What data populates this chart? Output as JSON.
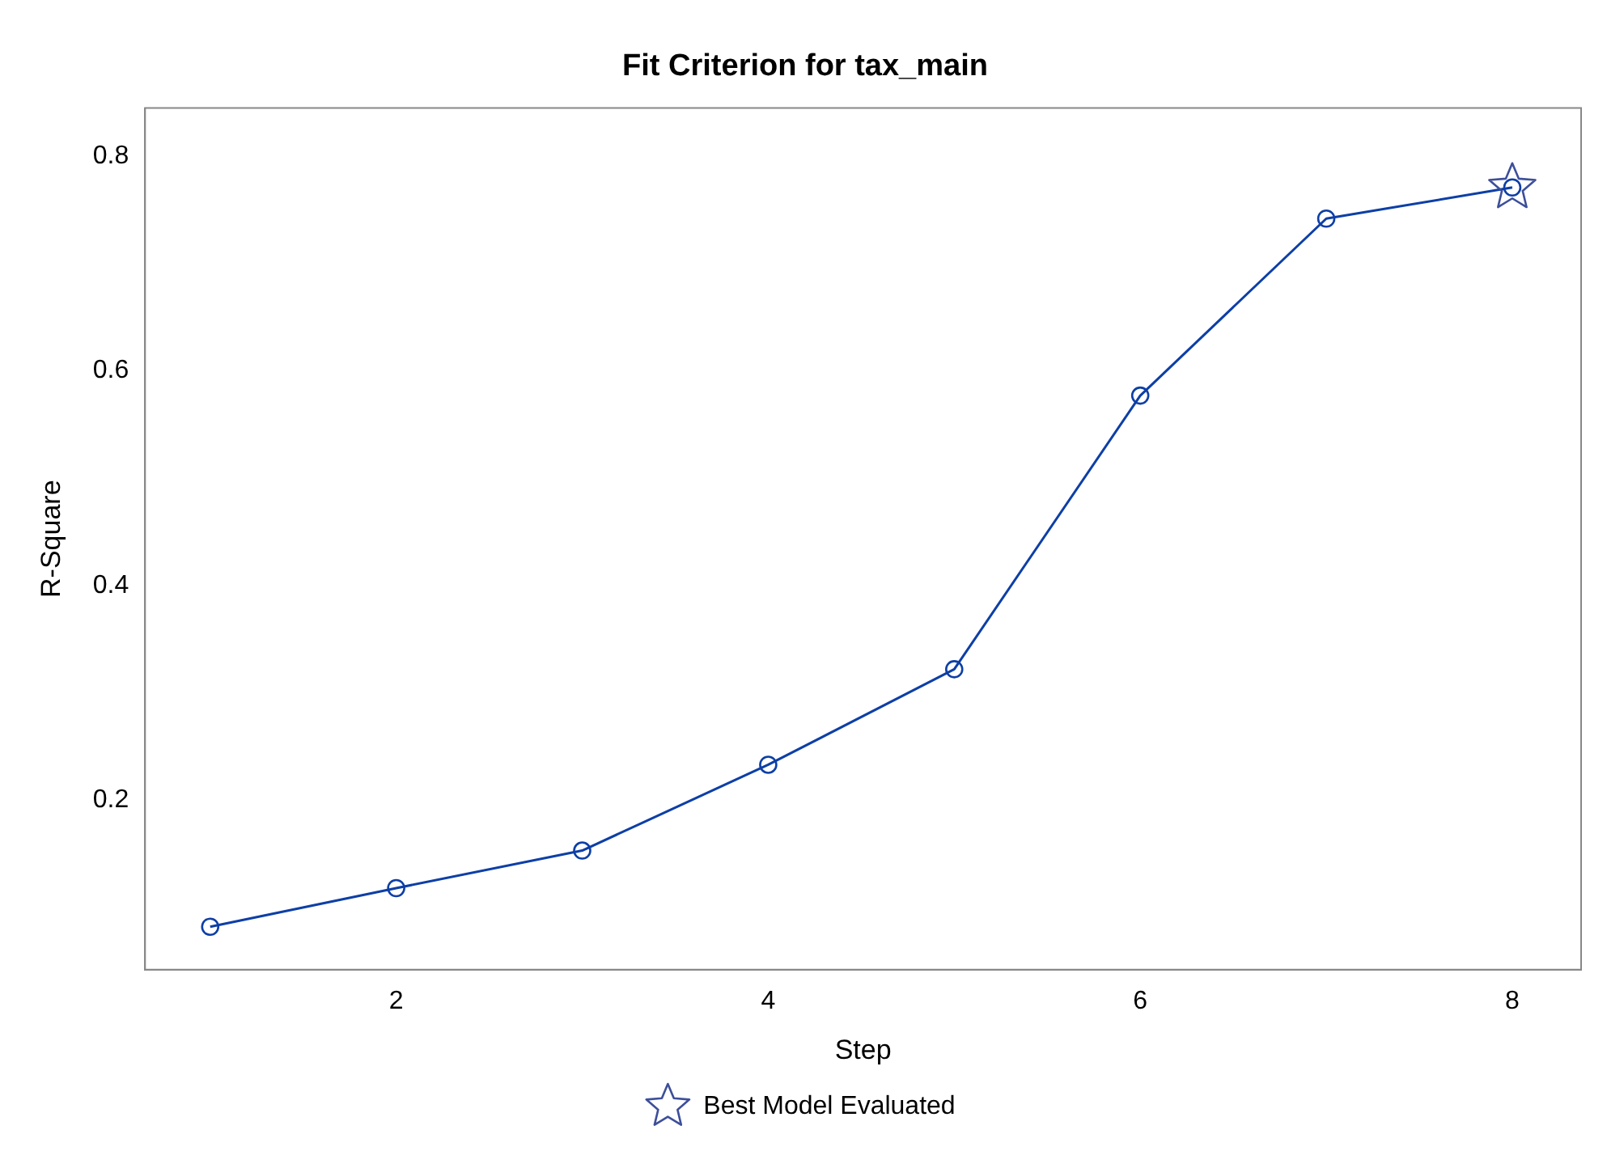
{
  "chart_data": {
    "type": "line",
    "title": "Fit Criterion for tax_main",
    "xlabel": "Step",
    "ylabel": "R-Square",
    "x": [
      1,
      2,
      3,
      4,
      5,
      6,
      7,
      8
    ],
    "series": [
      {
        "color": "#0d3fa6",
        "values": [
          0.082,
          0.118,
          0.153,
          0.233,
          0.322,
          0.577,
          0.742,
          0.771
        ],
        "marker": "circle",
        "line_style": "solid"
      },
      {
        "name": "Best Model Evaluated",
        "type": "scatter",
        "color": "#3d4f9a",
        "x": [
          8
        ],
        "values": [
          0.771
        ],
        "marker": "star"
      }
    ],
    "xlim": [
      0.65,
      8.37
    ],
    "xticks": [
      2,
      4,
      6,
      8
    ],
    "ylim": [
      0.042,
      0.845
    ],
    "yticks": [
      0.2,
      0.4,
      0.6,
      0.8
    ],
    "grid": false,
    "legend": "bottom"
  }
}
